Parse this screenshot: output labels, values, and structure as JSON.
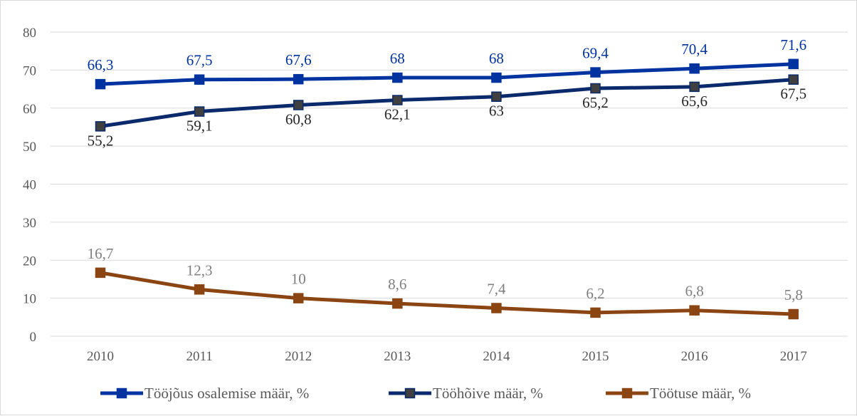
{
  "chart_data": {
    "type": "line",
    "title": "",
    "xlabel": "",
    "ylabel": "",
    "x": [
      "2010",
      "2011",
      "2012",
      "2013",
      "2014",
      "2015",
      "2016",
      "2017"
    ],
    "ylim": [
      0,
      80
    ],
    "yticks": [
      0,
      10,
      20,
      30,
      40,
      50,
      60,
      70,
      80
    ],
    "grid": true,
    "legend_position": "bottom",
    "series": [
      {
        "name": "Tööjõus osalemise määr, %",
        "values": [
          66.3,
          67.5,
          67.6,
          68,
          68,
          69.4,
          70.4,
          71.6
        ],
        "labels": [
          "66,3",
          "67,5",
          "67,6",
          "68",
          "68",
          "69,4",
          "70,4",
          "71,6"
        ],
        "color": "#0033a0",
        "marker_color": "#0033a0",
        "label_color": "#0033a0",
        "label_position": "above"
      },
      {
        "name": "Tööhõive määr, %",
        "values": [
          55.2,
          59.1,
          60.8,
          62.1,
          63,
          65.2,
          65.6,
          67.5
        ],
        "labels": [
          "55,2",
          "59,1",
          "60,8",
          "62,1",
          "63",
          "65,2",
          "65,6",
          "67,5"
        ],
        "color": "#0a2a6b",
        "marker_color": "#404040",
        "label_color": "#262626",
        "label_position": "below"
      },
      {
        "name": "Töötuse määr, %",
        "values": [
          16.7,
          12.3,
          10,
          8.6,
          7.4,
          6.2,
          6.8,
          5.8
        ],
        "labels": [
          "16,7",
          "12,3",
          "10",
          "8,6",
          "7,4",
          "6,2",
          "6,8",
          "5,8"
        ],
        "color": "#8b4513",
        "marker_color": "#8b4513",
        "label_color": "#7f7f7f",
        "label_position": "above"
      }
    ]
  }
}
